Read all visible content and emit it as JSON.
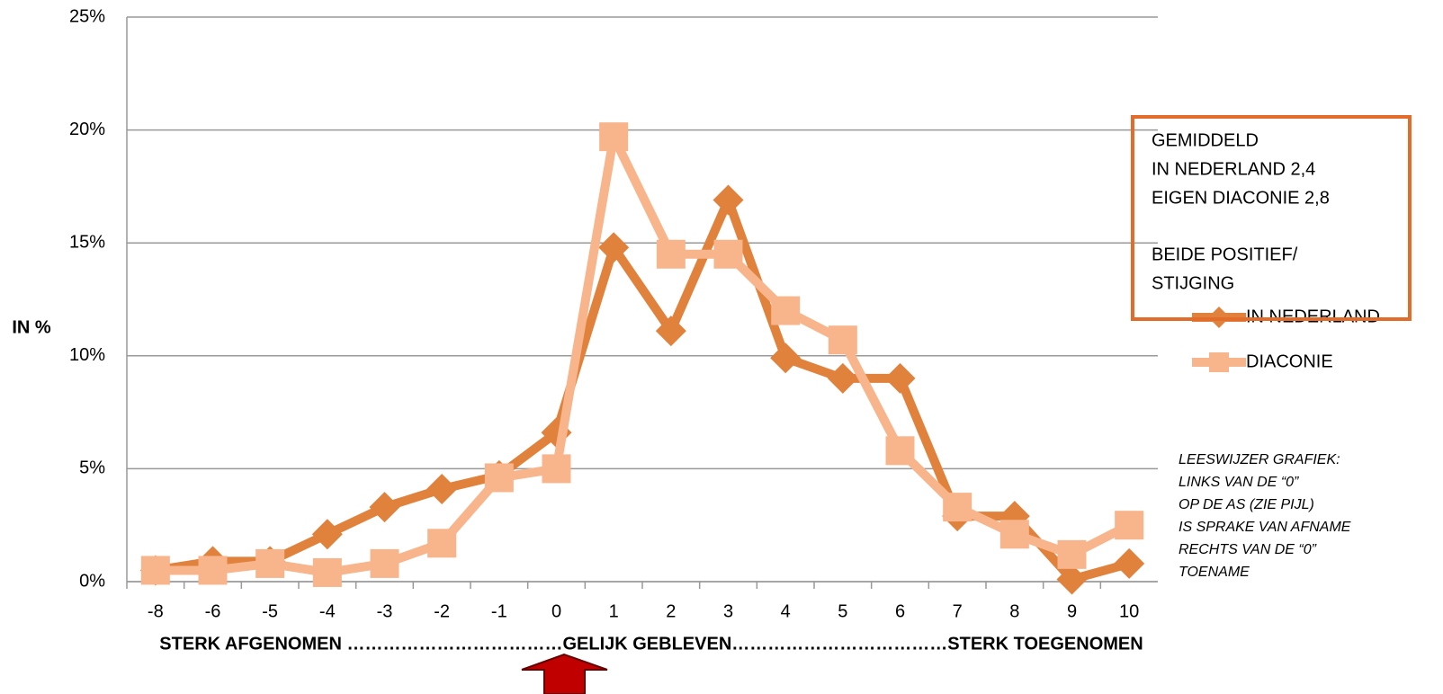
{
  "chart_data": {
    "type": "line",
    "y_label": "IN %",
    "x_caption": "STERK AFGENOMEN ………………………………GELIJK GEBLEVEN………………………………STERK TOEGENOMEN",
    "categories": [
      "-8",
      "-6",
      "-5",
      "-4",
      "-3",
      "-2",
      "-1",
      "0",
      "1",
      "2",
      "3",
      "4",
      "5",
      "6",
      "7",
      "8",
      "9",
      "10"
    ],
    "series": [
      {
        "name": "IN NEDERLAND",
        "color": "#e0813c",
        "marker": "diamond",
        "values": [
          0.5,
          0.9,
          0.9,
          2.1,
          3.3,
          4.1,
          4.7,
          6.6,
          14.8,
          11.1,
          16.9,
          9.9,
          9.0,
          9.0,
          2.9,
          2.9,
          0.1,
          0.8
        ]
      },
      {
        "name": "DIACONIE",
        "color": "#f8b48a",
        "marker": "square",
        "values": [
          0.5,
          0.5,
          0.8,
          0.4,
          0.8,
          1.7,
          4.6,
          5.0,
          19.7,
          14.5,
          14.5,
          12.0,
          10.7,
          5.8,
          3.3,
          2.1,
          1.2,
          2.5
        ]
      }
    ],
    "ylim": [
      0,
      25
    ],
    "yticks": [
      {
        "value": 0,
        "label": "0%"
      },
      {
        "value": 5,
        "label": "5%"
      },
      {
        "value": 10,
        "label": "10%"
      },
      {
        "value": 15,
        "label": "15%"
      },
      {
        "value": 20,
        "label": "20%"
      },
      {
        "value": 25,
        "label": "25%"
      }
    ],
    "grid": true,
    "legend": "right",
    "box_text": [
      [
        "GEMIDDELD",
        "IN NEDERLAND 2,4",
        "EIGEN DIACONIE 2,8"
      ],
      [
        "BEIDE POSITIEF/",
        "STIJGING"
      ]
    ],
    "note_lines": [
      "LEESWIJZER GRAFIEK:",
      "LINKS VAN DE “0”",
      "OP DE AS (ZIE PIJL)",
      "IS SPRAKE VAN AFNAME",
      "RECHTS VAN DE “0”",
      "TOENAME"
    ]
  }
}
